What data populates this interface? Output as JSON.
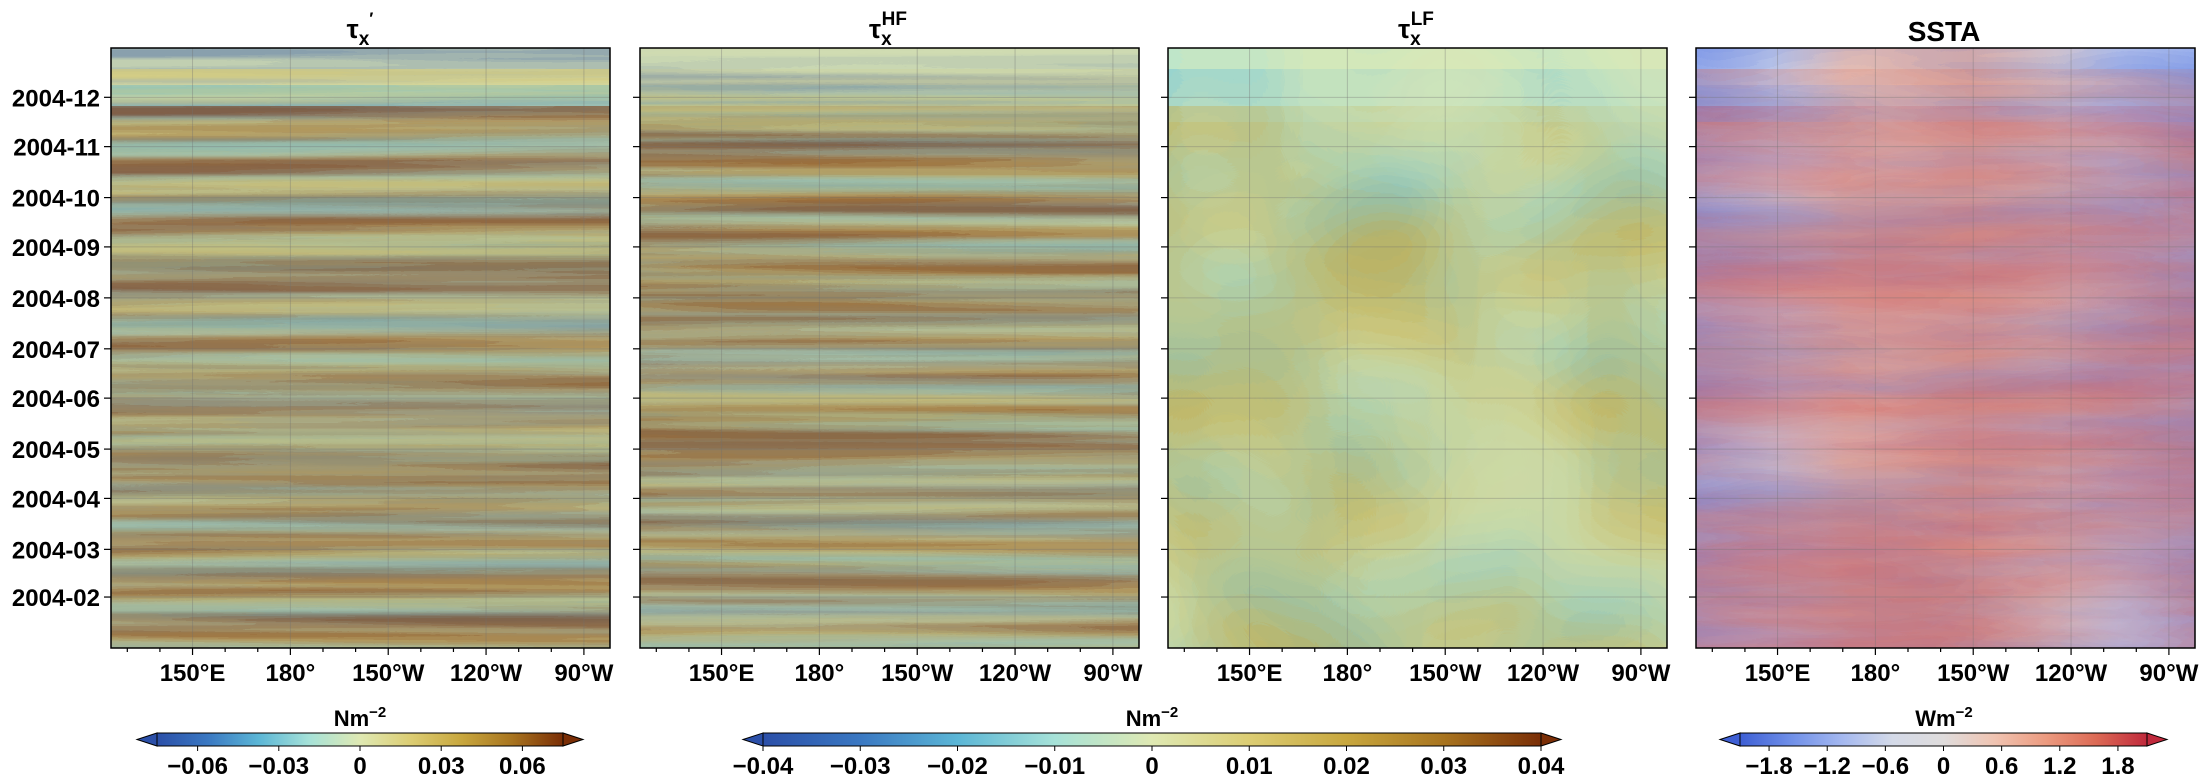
{
  "chart_data": [
    {
      "type": "heatmap",
      "title": "τx′",
      "title_parts": {
        "base": "τ",
        "sub": "x",
        "sup": "′"
      },
      "x_ticks": [
        "150°E",
        "180°",
        "150°W",
        "120°W",
        "90°W"
      ],
      "x_tick_lon": [
        150,
        180,
        210,
        240,
        270
      ],
      "xlim_lon": [
        125,
        278
      ],
      "y_ticks": [
        "2004-02",
        "2004-03",
        "2004-04",
        "2004-05",
        "2004-06",
        "2004-07",
        "2004-08",
        "2004-09",
        "2004-10",
        "2004-11",
        "2004-12"
      ],
      "ylim": [
        "2004-01-01",
        "2004-12-31"
      ],
      "grid": true,
      "colormap": "RdYlBu_r (blue → yellow → brown)",
      "colorbar": {
        "label": "Nm−2",
        "label_base": "Nm",
        "label_sup": "−2",
        "ticks": [
          "−0.06",
          "−0.03",
          "0",
          "0.03",
          "0.06"
        ],
        "tick_values": [
          -0.06,
          -0.03,
          0,
          0.03,
          0.06
        ],
        "range": [
          -0.075,
          0.075
        ],
        "extend": "both"
      }
    },
    {
      "type": "heatmap",
      "title": "τxHF",
      "title_parts": {
        "base": "τ",
        "sub": "x",
        "sup": "HF"
      },
      "x_ticks": [
        "150°E",
        "180°",
        "150°W",
        "120°W",
        "90°W"
      ],
      "x_tick_lon": [
        150,
        180,
        210,
        240,
        270
      ],
      "xlim_lon": [
        125,
        278
      ],
      "grid": true,
      "colormap": "RdYlBu_r (blue → yellow → brown)"
    },
    {
      "type": "heatmap",
      "title": "τxLF",
      "title_parts": {
        "base": "τ",
        "sub": "x",
        "sup": "LF"
      },
      "x_ticks": [
        "150°E",
        "180°",
        "150°W",
        "120°W",
        "90°W"
      ],
      "x_tick_lon": [
        150,
        180,
        210,
        240,
        270
      ],
      "xlim_lon": [
        125,
        278
      ],
      "grid": true,
      "colormap": "RdYlBu_r (blue → yellow → brown)",
      "colorbar": {
        "label": "Nm−2",
        "label_base": "Nm",
        "label_sup": "−2",
        "ticks": [
          "−0.04",
          "−0.03",
          "−0.02",
          "−0.01",
          "0",
          "0.01",
          "0.02",
          "0.03",
          "0.04"
        ],
        "tick_values": [
          -0.04,
          -0.03,
          -0.02,
          -0.01,
          0,
          0.01,
          0.02,
          0.03,
          0.04
        ],
        "range": [
          -0.04,
          0.04
        ],
        "extend": "both",
        "shared_by": [
          "τxHF",
          "τxLF"
        ]
      }
    },
    {
      "type": "heatmap",
      "title": "SSTA",
      "x_ticks": [
        "150°E",
        "180°",
        "150°W",
        "120°W",
        "90°W"
      ],
      "x_tick_lon": [
        150,
        180,
        210,
        240,
        270
      ],
      "xlim_lon": [
        125,
        278
      ],
      "grid": true,
      "colormap": "coolwarm (blue → grey → red)",
      "colorbar": {
        "label": "Wm−2",
        "label_base": "Wm",
        "label_sup": "−2",
        "ticks": [
          "−1.8",
          "−1.2",
          "−0.6",
          "0",
          "0.6",
          "1.2",
          "1.8"
        ],
        "tick_values": [
          -1.8,
          -1.2,
          -0.6,
          0,
          0.6,
          1.2,
          1.8
        ],
        "range": [
          -2.1,
          2.1
        ],
        "extend": "both"
      }
    }
  ],
  "colors": {
    "ryb": [
      "#2b4fa8",
      "#3a78c2",
      "#5bb6d6",
      "#a6e2d8",
      "#dfe9b3",
      "#dccd73",
      "#c8a73e",
      "#a8741f",
      "#7a2e06"
    ],
    "coolwarm": [
      "#3e5fd4",
      "#6f8fe8",
      "#a4b8f0",
      "#d4dae8",
      "#dfdcdc",
      "#f0c4b2",
      "#ec9b80",
      "#dc6a55",
      "#c0293c"
    ]
  }
}
